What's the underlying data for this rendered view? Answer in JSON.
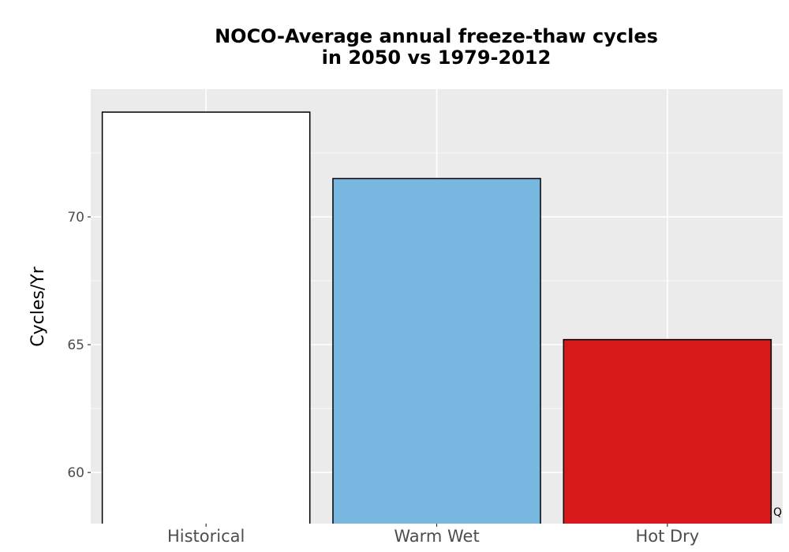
{
  "chart_data": {
    "type": "bar",
    "title_lines": [
      "NOCO-Average annual freeze-thaw cycles",
      "in 2050 vs 1979-2012"
    ],
    "xlabel": "",
    "ylabel": "Cycles/Yr",
    "categories": [
      "Historical",
      "Warm Wet",
      "Hot Dry"
    ],
    "values": [
      74.1,
      71.5,
      65.2
    ],
    "colors": [
      "#ffffff",
      "#78b7e0",
      "#d7191c"
    ],
    "ylim": [
      58,
      75
    ],
    "yticks": [
      60,
      65,
      70
    ],
    "grid": true,
    "panel_background": "#ebebeb",
    "grid_color": "#ffffff",
    "bar_outline": "#000000",
    "corner_text": "Q"
  }
}
